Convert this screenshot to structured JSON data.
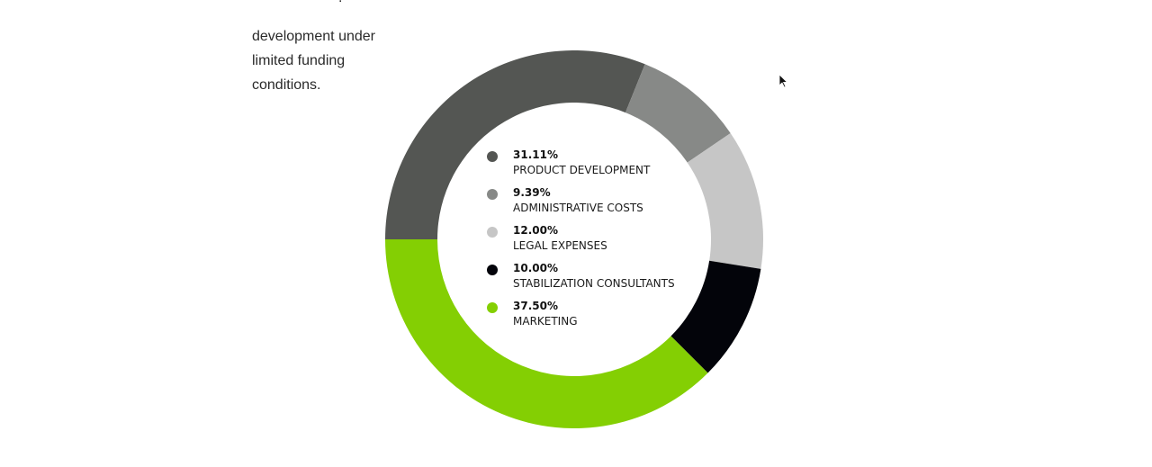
{
  "intro": {
    "lines": [
      "development under",
      "limited funding",
      "conditions."
    ]
  },
  "colors": {
    "product_development": "#545653",
    "administrative_costs": "#878987",
    "legal_expenses": "#c6c6c6",
    "stabilization_consultants": "#03040a",
    "marketing": "#84cf03",
    "background": "#ffffff"
  },
  "chart_data": {
    "type": "pie",
    "variant": "donut",
    "title": "",
    "categories": [
      "PRODUCT DEVELOPMENT",
      "ADMINISTRATIVE COSTS",
      "LEGAL EXPENSES",
      "STABILIZATION CONSULTANTS",
      "MARKETING"
    ],
    "values": [
      31.11,
      9.39,
      12.0,
      10.0,
      37.5
    ],
    "value_labels": [
      "31.11%",
      "9.39%",
      "12.00%",
      "10.00%",
      "37.50%"
    ],
    "unit": "%",
    "colors": [
      "#545653",
      "#878987",
      "#c6c6c6",
      "#03040a",
      "#84cf03"
    ],
    "legend": "center"
  },
  "cursor_icon": "arrow-cursor-icon"
}
